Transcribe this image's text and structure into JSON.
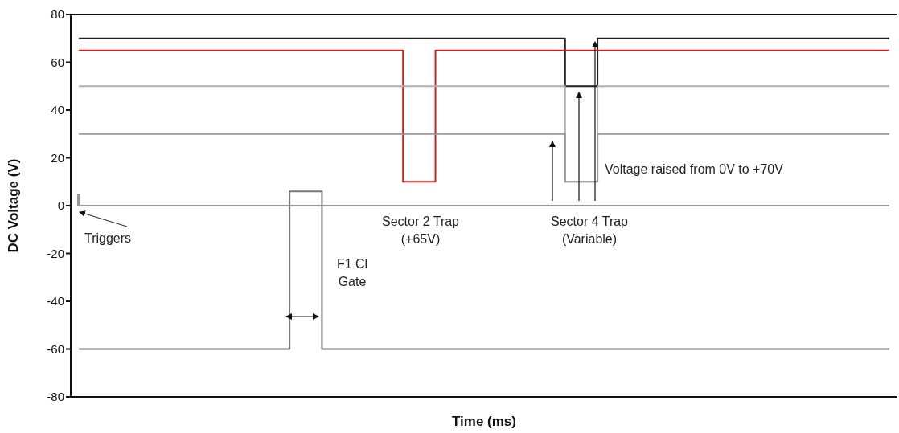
{
  "chart_data": {
    "type": "step",
    "xlabel": "Time (ms)",
    "ylabel": "DC Voltage (V)",
    "categories": [
      null,
      null,
      null,
      null,
      null,
      null,
      null,
      null,
      null,
      null,
      null,
      null,
      null,
      null,
      null,
      null,
      null,
      null,
      null,
      null,
      null,
      null,
      null,
      null,
      null,
      null,
      null,
      null,
      null,
      null,
      null,
      null,
      null,
      null,
      null,
      null,
      null,
      null,
      null,
      null,
      null,
      null,
      null,
      null,
      null,
      null,
      null,
      null,
      null,
      null,
      null
    ],
    "series": [
      {
        "color": "#222222",
        "values": [
          70,
          70,
          70,
          70,
          70,
          70,
          70,
          70,
          70,
          70,
          70,
          70,
          70,
          70,
          70,
          70,
          70,
          70,
          70,
          70,
          70,
          70,
          70,
          70,
          70,
          70,
          70,
          70,
          70,
          70,
          50,
          50,
          70,
          70,
          70,
          70,
          70,
          70,
          70,
          70,
          70,
          70,
          70,
          70,
          70,
          70,
          70,
          70,
          70,
          70,
          70
        ]
      },
      {
        "color": "#cc2020",
        "values": [
          65,
          65,
          65,
          65,
          65,
          65,
          65,
          65,
          65,
          65,
          65,
          65,
          65,
          65,
          65,
          65,
          65,
          65,
          65,
          65,
          10,
          10,
          65,
          65,
          65,
          65,
          65,
          65,
          65,
          65,
          65,
          65,
          65,
          65,
          65,
          65,
          65,
          65,
          65,
          65,
          65,
          65,
          65,
          65,
          65,
          65,
          65,
          65,
          65,
          65,
          65
        ]
      },
      {
        "color": "#b0b0b0",
        "values": [
          50,
          50,
          50,
          50,
          50,
          50,
          50,
          50,
          50,
          50,
          50,
          50,
          50,
          50,
          50,
          50,
          50,
          50,
          50,
          50,
          50,
          50,
          50,
          50,
          50,
          50,
          50,
          50,
          50,
          50,
          10,
          10,
          50,
          50,
          50,
          50,
          50,
          50,
          50,
          50,
          50,
          50,
          50,
          50,
          50,
          50,
          50,
          50,
          50,
          50,
          50
        ]
      },
      {
        "color": "#999999",
        "values": [
          30,
          30,
          30,
          30,
          30,
          30,
          30,
          30,
          30,
          30,
          30,
          30,
          30,
          30,
          30,
          30,
          30,
          30,
          30,
          30,
          30,
          30,
          30,
          30,
          30,
          30,
          30,
          30,
          30,
          30,
          10,
          10,
          30,
          30,
          30,
          30,
          30,
          30,
          30,
          30,
          30,
          30,
          30,
          30,
          30,
          30,
          30,
          30,
          30,
          30,
          30
        ]
      },
      {
        "color": "#999999",
        "values": [
          0,
          0,
          0,
          0,
          0,
          0,
          0,
          0,
          0,
          0,
          0,
          0,
          0,
          0,
          0,
          0,
          0,
          0,
          0,
          0,
          0,
          0,
          0,
          0,
          0,
          0,
          0,
          0,
          0,
          0,
          0,
          0,
          0,
          0,
          0,
          0,
          0,
          0,
          0,
          0,
          0,
          0,
          0,
          0,
          0,
          0,
          0,
          0,
          0,
          0,
          0
        ]
      },
      {
        "color": "#777777",
        "values": [
          -60,
          -60,
          -60,
          -60,
          -60,
          -60,
          -60,
          -60,
          -60,
          -60,
          -60,
          -60,
          -60,
          6,
          6,
          -60,
          -60,
          -60,
          -60,
          -60,
          -60,
          -60,
          -60,
          -60,
          -60,
          -60,
          -60,
          -60,
          -60,
          -60,
          -60,
          -60,
          -60,
          -60,
          -60,
          -60,
          -60,
          -60,
          -60,
          -60,
          -60,
          -60,
          -60,
          -60,
          -60,
          -60,
          -60,
          -60,
          -60,
          -60,
          -60
        ]
      },
      {
        "type": "bar",
        "color": "#999999",
        "values": [
          5,
          null,
          null,
          null,
          null,
          null,
          null,
          null,
          null,
          null,
          null,
          null,
          null,
          null,
          null,
          null,
          null,
          null,
          null,
          null,
          null,
          null,
          null,
          null,
          null,
          null,
          null,
          null,
          null,
          null,
          null,
          null,
          null,
          null,
          null,
          null,
          null,
          null,
          null,
          null,
          null,
          null,
          null,
          null,
          null,
          null,
          null,
          null,
          null,
          null,
          null
        ]
      }
    ],
    "ylim": [
      -80,
      80
    ],
    "yticks": [
      -80,
      -60,
      -40,
      -20,
      0,
      20,
      40,
      60,
      80
    ],
    "tick_labels": "y",
    "grid": false,
    "legend": false,
    "annotations": [
      "Triggers",
      "F1 Cl Gate",
      "Sector 2 Trap (+65V)",
      "Sector 4 Trap (Variable)",
      "Voltage raised from 0V to +70V"
    ]
  }
}
